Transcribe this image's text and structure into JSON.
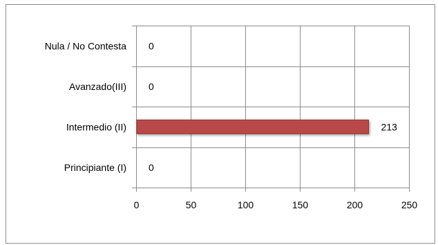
{
  "chart_data": {
    "type": "bar",
    "orientation": "horizontal",
    "categories": [
      "Principiante (I)",
      "Intermedio (II)",
      "Avanzado(III)",
      "Nula / No Contesta"
    ],
    "values": [
      0,
      213,
      0,
      0
    ],
    "data_labels": [
      "0",
      "213",
      "0",
      "0"
    ],
    "x_ticks": [
      0,
      50,
      100,
      150,
      200,
      250
    ],
    "xlim": [
      0,
      250
    ],
    "grid": true,
    "legend": "none",
    "bar_color": "#b94a48",
    "bar_stroke": "#8e2f2d",
    "title": "",
    "xlabel": "",
    "ylabel": ""
  }
}
